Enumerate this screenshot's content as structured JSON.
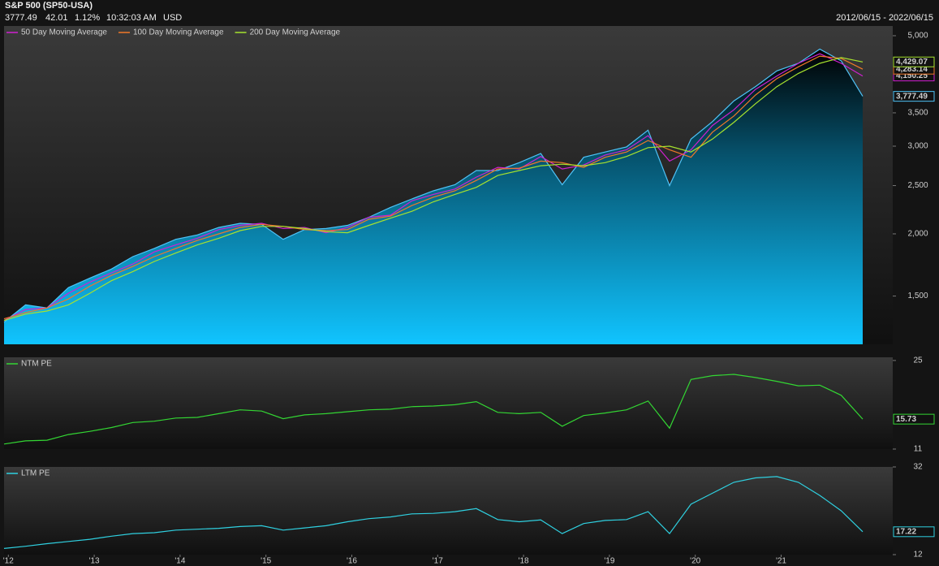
{
  "header": {
    "title": "S&P 500 (SP50-USA)",
    "price": "3777.49",
    "change": "42.01",
    "change_pct": "1.12%",
    "time": "10:32:03 AM",
    "currency": "USD",
    "date_range": "2012/06/15 - 2022/06/15"
  },
  "chart_data": [
    {
      "type": "area",
      "log_scale": true,
      "color": "#4fc3f7",
      "x": [
        2012.45,
        2012.7,
        2012.95,
        2013.2,
        2013.45,
        2013.7,
        2013.95,
        2014.2,
        2014.45,
        2014.7,
        2014.95,
        2015.2,
        2015.45,
        2015.7,
        2015.95,
        2016.2,
        2016.45,
        2016.7,
        2016.95,
        2017.2,
        2017.45,
        2017.7,
        2017.95,
        2018.2,
        2018.45,
        2018.7,
        2018.95,
        2019.2,
        2019.45,
        2019.7,
        2019.95,
        2020.2,
        2020.45,
        2020.7,
        2020.95,
        2021.2,
        2021.45,
        2021.7,
        2021.95,
        2022.2,
        2022.45
      ],
      "values": [
        1330,
        1440,
        1420,
        1560,
        1630,
        1700,
        1800,
        1870,
        1950,
        1990,
        2060,
        2100,
        2090,
        1950,
        2040,
        2050,
        2080,
        2160,
        2260,
        2350,
        2440,
        2510,
        2680,
        2680,
        2780,
        2900,
        2510,
        2850,
        2920,
        2990,
        3230,
        2500,
        3100,
        3360,
        3700,
        3950,
        4250,
        4400,
        4700,
        4450,
        3777.49
      ],
      "value_labels": [
        null,
        null,
        null,
        null,
        null,
        null,
        null,
        null,
        null,
        null,
        null,
        null,
        null,
        null,
        null,
        null,
        null,
        null,
        null,
        null,
        null,
        null,
        null,
        null,
        null,
        null,
        null,
        null,
        null,
        null,
        null,
        null,
        null,
        null,
        null,
        null,
        null,
        null,
        null,
        null,
        "3,777.49"
      ],
      "series": [
        {
          "name": "50 Day Moving Average",
          "color": "#d020d0",
          "values": [
            1340,
            1410,
            1420,
            1520,
            1600,
            1670,
            1740,
            1840,
            1900,
            1960,
            2040,
            2080,
            2100,
            2050,
            2060,
            2010,
            2060,
            2160,
            2180,
            2330,
            2400,
            2460,
            2600,
            2720,
            2700,
            2860,
            2700,
            2750,
            2880,
            2950,
            3150,
            2800,
            2950,
            3300,
            3550,
            3900,
            4150,
            4400,
            4600,
            4400,
            4150.25
          ],
          "value_labels": [
            null,
            null,
            null,
            null,
            null,
            null,
            null,
            null,
            null,
            null,
            null,
            null,
            null,
            null,
            null,
            null,
            null,
            null,
            null,
            null,
            null,
            null,
            null,
            null,
            null,
            null,
            null,
            null,
            null,
            null,
            null,
            null,
            null,
            null,
            null,
            null,
            null,
            null,
            null,
            null,
            "4,150.25"
          ]
        },
        {
          "name": "100 Day Moving Average",
          "color": "#f07828",
          "values": [
            1350,
            1390,
            1420,
            1480,
            1570,
            1650,
            1720,
            1800,
            1870,
            1940,
            2000,
            2060,
            2090,
            2070,
            2040,
            2030,
            2040,
            2140,
            2170,
            2280,
            2370,
            2440,
            2560,
            2700,
            2710,
            2800,
            2780,
            2720,
            2850,
            2920,
            3080,
            2950,
            2850,
            3200,
            3450,
            3800,
            4100,
            4330,
            4550,
            4500,
            4283.14
          ],
          "value_labels": [
            null,
            null,
            null,
            null,
            null,
            null,
            null,
            null,
            null,
            null,
            null,
            null,
            null,
            null,
            null,
            null,
            null,
            null,
            null,
            null,
            null,
            null,
            null,
            null,
            null,
            null,
            null,
            null,
            null,
            null,
            null,
            null,
            null,
            null,
            null,
            null,
            null,
            null,
            null,
            null,
            "4,283.14"
          ]
        },
        {
          "name": "200 Day Moving Average",
          "color": "#a6e22e",
          "values": [
            1340,
            1380,
            1400,
            1440,
            1520,
            1610,
            1680,
            1760,
            1830,
            1900,
            1960,
            2030,
            2070,
            2070,
            2050,
            2020,
            2010,
            2080,
            2150,
            2220,
            2320,
            2400,
            2480,
            2620,
            2680,
            2740,
            2760,
            2740,
            2780,
            2860,
            2980,
            3000,
            2920,
            3100,
            3350,
            3650,
            3950,
            4200,
            4400,
            4520,
            4429.07
          ],
          "value_labels": [
            null,
            null,
            null,
            null,
            null,
            null,
            null,
            null,
            null,
            null,
            null,
            null,
            null,
            null,
            null,
            null,
            null,
            null,
            null,
            null,
            null,
            null,
            null,
            null,
            null,
            null,
            null,
            null,
            null,
            null,
            null,
            null,
            null,
            null,
            null,
            null,
            null,
            null,
            null,
            null,
            "4,429.07"
          ]
        }
      ],
      "xlim": [
        2012.45,
        2022.45
      ],
      "ylim": [
        1200,
        5230
      ],
      "yticks": [
        {
          "value": 1500,
          "label": "1,500"
        },
        {
          "value": 2000,
          "label": "2,000"
        },
        {
          "value": 2500,
          "label": "2,500"
        },
        {
          "value": 3000,
          "label": "3,000"
        },
        {
          "value": 3500,
          "label": "3,500"
        },
        {
          "value": 5000,
          "label": "5,000"
        }
      ]
    },
    {
      "type": "line",
      "x": [
        2012.45,
        2012.7,
        2012.95,
        2013.2,
        2013.45,
        2013.7,
        2013.95,
        2014.2,
        2014.45,
        2014.7,
        2014.95,
        2015.2,
        2015.45,
        2015.7,
        2015.95,
        2016.2,
        2016.45,
        2016.7,
        2016.95,
        2017.2,
        2017.45,
        2017.7,
        2017.95,
        2018.2,
        2018.45,
        2018.7,
        2018.95,
        2019.2,
        2019.45,
        2019.7,
        2019.95,
        2020.2,
        2020.45,
        2020.7,
        2020.95,
        2021.2,
        2021.45,
        2021.7,
        2021.95,
        2022.2,
        2022.45
      ],
      "series": [
        {
          "name": "NTM PE",
          "color": "#33d633",
          "values": [
            11.8,
            12.3,
            12.4,
            13.3,
            13.8,
            14.4,
            15.2,
            15.4,
            15.9,
            16.0,
            16.6,
            17.2,
            17.0,
            15.8,
            16.4,
            16.6,
            16.9,
            17.2,
            17.3,
            17.7,
            17.8,
            18.0,
            18.5,
            16.8,
            16.6,
            16.8,
            14.6,
            16.3,
            16.7,
            17.2,
            18.6,
            14.3,
            22.0,
            22.6,
            22.8,
            22.3,
            21.7,
            21.0,
            21.1,
            19.5,
            15.73
          ],
          "value_labels": [
            null,
            null,
            null,
            null,
            null,
            null,
            null,
            null,
            null,
            null,
            null,
            null,
            null,
            null,
            null,
            null,
            null,
            null,
            null,
            null,
            null,
            null,
            null,
            null,
            null,
            null,
            null,
            null,
            null,
            null,
            null,
            null,
            null,
            null,
            null,
            null,
            null,
            null,
            null,
            null,
            "15.73"
          ]
        }
      ],
      "xlim": [
        2012.45,
        2022.45
      ],
      "ylim": [
        11,
        25.5
      ],
      "yticks": [
        11,
        25
      ]
    },
    {
      "type": "line",
      "x": [
        2012.45,
        2012.7,
        2012.95,
        2013.2,
        2013.45,
        2013.7,
        2013.95,
        2014.2,
        2014.45,
        2014.7,
        2014.95,
        2015.2,
        2015.45,
        2015.7,
        2015.95,
        2016.2,
        2016.45,
        2016.7,
        2016.95,
        2017.2,
        2017.45,
        2017.7,
        2017.95,
        2018.2,
        2018.45,
        2018.7,
        2018.95,
        2019.2,
        2019.45,
        2019.7,
        2019.95,
        2020.2,
        2020.45,
        2020.7,
        2020.95,
        2021.2,
        2021.45,
        2021.7,
        2021.95,
        2022.2,
        2022.45
      ],
      "series": [
        {
          "name": "LTM PE",
          "color": "#2fd0e0",
          "values": [
            13.4,
            13.9,
            14.5,
            15.0,
            15.5,
            16.2,
            16.8,
            17.0,
            17.6,
            17.8,
            18.0,
            18.4,
            18.6,
            17.6,
            18.1,
            18.6,
            19.5,
            20.2,
            20.6,
            21.3,
            21.4,
            21.8,
            22.5,
            20.0,
            19.5,
            19.9,
            16.8,
            19.1,
            19.8,
            20.0,
            21.8,
            16.8,
            23.5,
            26.0,
            28.5,
            29.5,
            29.8,
            28.5,
            25.5,
            22.0,
            17.22
          ],
          "value_labels": [
            null,
            null,
            null,
            null,
            null,
            null,
            null,
            null,
            null,
            null,
            null,
            null,
            null,
            null,
            null,
            null,
            null,
            null,
            null,
            null,
            null,
            null,
            null,
            null,
            null,
            null,
            null,
            null,
            null,
            null,
            null,
            null,
            null,
            null,
            null,
            null,
            null,
            null,
            null,
            null,
            "17.22"
          ]
        }
      ],
      "xlim": [
        2012.45,
        2022.45
      ],
      "ylim": [
        12,
        32
      ],
      "yticks": [
        12,
        32
      ],
      "xticks": [
        {
          "value": 2012.5,
          "label": "'12"
        },
        {
          "value": 2013.5,
          "label": "'13"
        },
        {
          "value": 2014.5,
          "label": "'14"
        },
        {
          "value": 2015.5,
          "label": "'15"
        },
        {
          "value": 2016.5,
          "label": "'16"
        },
        {
          "value": 2017.5,
          "label": "'17"
        },
        {
          "value": 2018.5,
          "label": "'18"
        },
        {
          "value": 2019.5,
          "label": "'19"
        },
        {
          "value": 2020.5,
          "label": "'20"
        },
        {
          "value": 2021.5,
          "label": "'21"
        }
      ]
    }
  ]
}
